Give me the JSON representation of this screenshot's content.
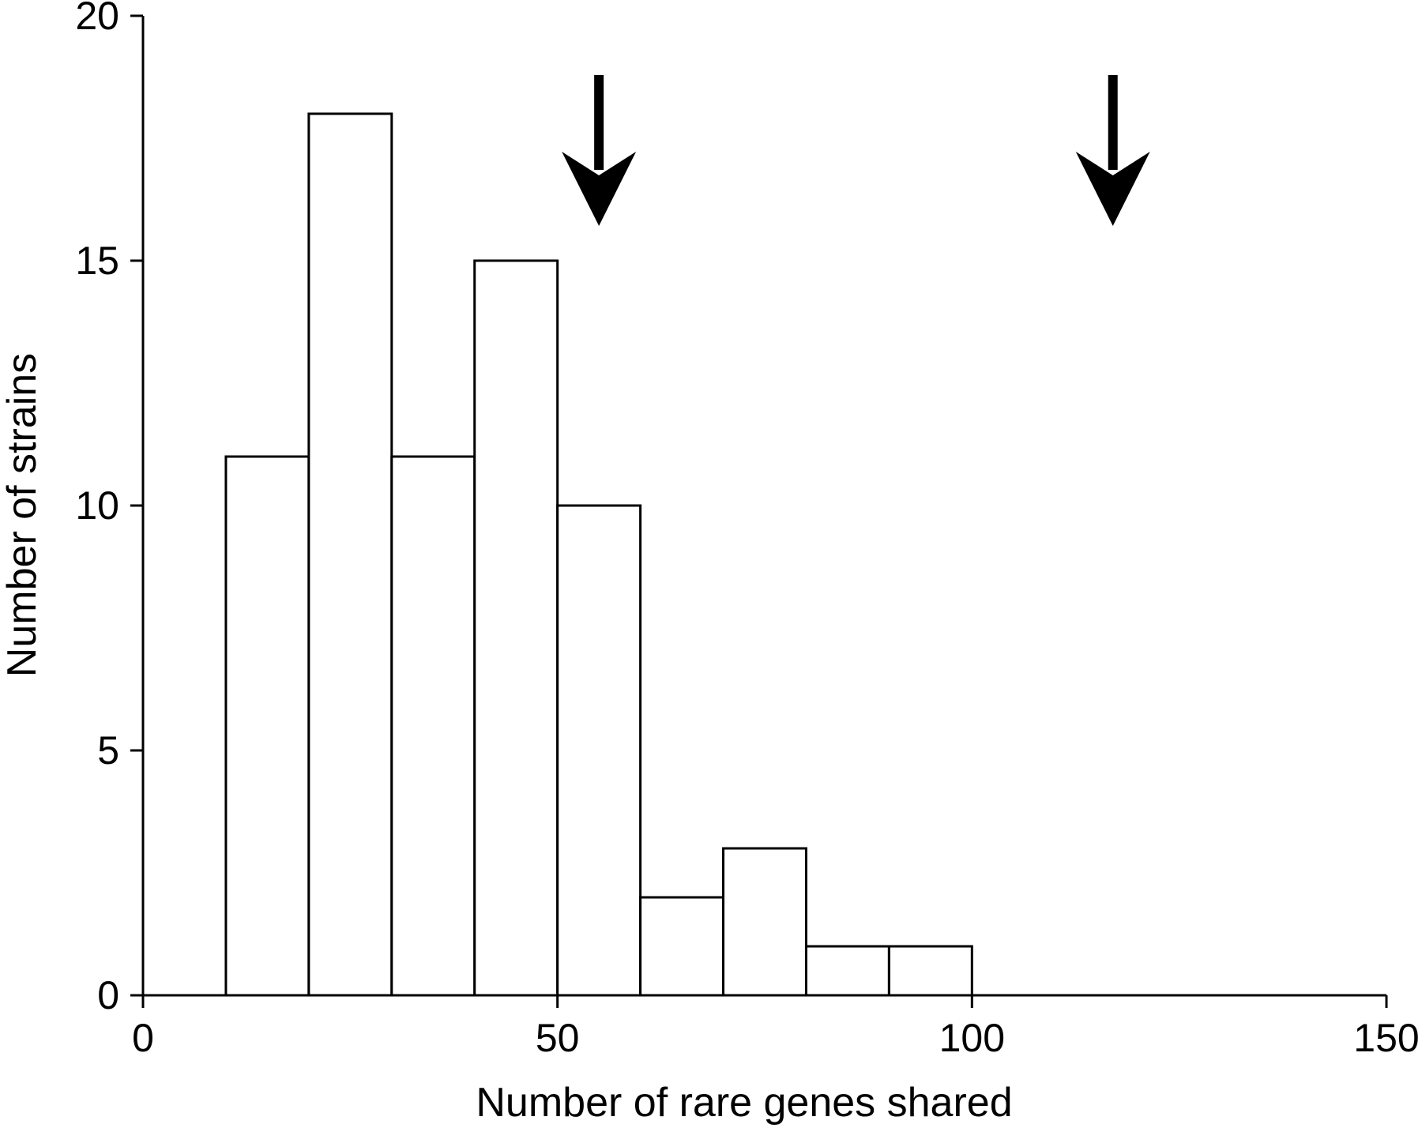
{
  "chart_data": {
    "type": "bar",
    "subtype": "histogram",
    "title": "",
    "xlabel": "Number of rare genes shared",
    "ylabel": "Number of strains",
    "xlim": [
      0,
      150
    ],
    "ylim": [
      0,
      20
    ],
    "x_ticks": [
      0,
      50,
      100,
      150
    ],
    "y_ticks": [
      0,
      5,
      10,
      15,
      20
    ],
    "bin_width": 10,
    "bins": [
      {
        "start": 10,
        "end": 20,
        "count": 11
      },
      {
        "start": 20,
        "end": 30,
        "count": 18
      },
      {
        "start": 30,
        "end": 40,
        "count": 11
      },
      {
        "start": 40,
        "end": 50,
        "count": 15
      },
      {
        "start": 50,
        "end": 60,
        "count": 10
      },
      {
        "start": 60,
        "end": 70,
        "count": 2
      },
      {
        "start": 70,
        "end": 80,
        "count": 3
      },
      {
        "start": 80,
        "end": 90,
        "count": 1
      },
      {
        "start": 90,
        "end": 100,
        "count": 1
      }
    ],
    "annotations": [
      {
        "type": "arrow-down",
        "x": 55
      },
      {
        "type": "arrow-down",
        "x": 117
      }
    ],
    "grid": false,
    "legend": "none",
    "colors": {
      "bar_fill": "#ffffff",
      "bar_stroke": "#000000",
      "arrow": "#000000"
    }
  }
}
